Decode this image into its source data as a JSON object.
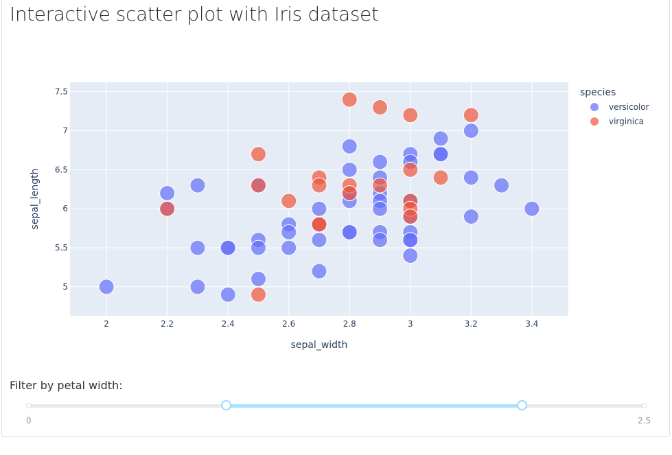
{
  "title": "Interactive scatter plot with Iris dataset",
  "chart_data": {
    "type": "scatter",
    "xlabel": "sepal_width",
    "ylabel": "sepal_length",
    "xlim": [
      1.88,
      3.52
    ],
    "ylim": [
      4.63,
      7.62
    ],
    "x_ticks": [
      2,
      2.2,
      2.4,
      2.6,
      2.8,
      3,
      3.2,
      3.4
    ],
    "y_ticks": [
      5,
      5.5,
      6,
      6.5,
      7,
      7.5
    ],
    "grid": true,
    "legend_title": "species",
    "legend_position": "right",
    "series": [
      {
        "name": "versicolor",
        "color": "#636efa",
        "points": [
          [
            2.0,
            5.0
          ],
          [
            2.2,
            6.2
          ],
          [
            2.2,
            6.0
          ],
          [
            2.3,
            6.3
          ],
          [
            2.3,
            5.5
          ],
          [
            2.3,
            5.0
          ],
          [
            2.4,
            5.5
          ],
          [
            2.4,
            5.5
          ],
          [
            2.4,
            4.9
          ],
          [
            2.5,
            5.6
          ],
          [
            2.5,
            5.5
          ],
          [
            2.5,
            5.1
          ],
          [
            2.5,
            6.3
          ],
          [
            2.6,
            5.8
          ],
          [
            2.6,
            5.7
          ],
          [
            2.6,
            5.5
          ],
          [
            2.7,
            6.0
          ],
          [
            2.7,
            5.8
          ],
          [
            2.7,
            5.6
          ],
          [
            2.7,
            5.2
          ],
          [
            2.8,
            6.8
          ],
          [
            2.8,
            6.5
          ],
          [
            2.8,
            6.1
          ],
          [
            2.8,
            6.2
          ],
          [
            2.8,
            5.7
          ],
          [
            2.8,
            5.7
          ],
          [
            2.9,
            6.6
          ],
          [
            2.9,
            6.4
          ],
          [
            2.9,
            6.2
          ],
          [
            2.9,
            6.1
          ],
          [
            2.9,
            6.0
          ],
          [
            2.9,
            5.7
          ],
          [
            2.9,
            5.6
          ],
          [
            3.0,
            6.7
          ],
          [
            3.0,
            6.6
          ],
          [
            3.0,
            6.1
          ],
          [
            3.0,
            5.9
          ],
          [
            3.0,
            5.7
          ],
          [
            3.0,
            5.6
          ],
          [
            3.0,
            5.6
          ],
          [
            3.0,
            5.4
          ],
          [
            3.1,
            6.9
          ],
          [
            3.1,
            6.7
          ],
          [
            3.1,
            6.7
          ],
          [
            3.2,
            7.0
          ],
          [
            3.2,
            6.4
          ],
          [
            3.2,
            5.9
          ],
          [
            3.3,
            6.3
          ],
          [
            3.4,
            6.0
          ]
        ]
      },
      {
        "name": "virginica",
        "color": "#ef553b",
        "points": [
          [
            2.2,
            6.0
          ],
          [
            2.5,
            6.7
          ],
          [
            2.5,
            6.3
          ],
          [
            2.5,
            4.9
          ],
          [
            2.6,
            6.1
          ],
          [
            2.7,
            6.4
          ],
          [
            2.7,
            6.3
          ],
          [
            2.7,
            5.8
          ],
          [
            2.7,
            5.8
          ],
          [
            2.8,
            7.4
          ],
          [
            2.8,
            6.3
          ],
          [
            2.8,
            6.2
          ],
          [
            2.9,
            7.3
          ],
          [
            2.9,
            6.3
          ],
          [
            3.0,
            7.2
          ],
          [
            3.0,
            6.5
          ],
          [
            3.0,
            6.1
          ],
          [
            3.0,
            6.0
          ],
          [
            3.0,
            5.9
          ],
          [
            3.1,
            6.4
          ],
          [
            3.2,
            7.2
          ]
        ]
      }
    ]
  },
  "slider": {
    "label": "Filter by petal width:",
    "min": 0,
    "max": 2.5,
    "value": [
      0.8,
      2.0
    ],
    "min_label": "0",
    "max_label": "2.5"
  }
}
